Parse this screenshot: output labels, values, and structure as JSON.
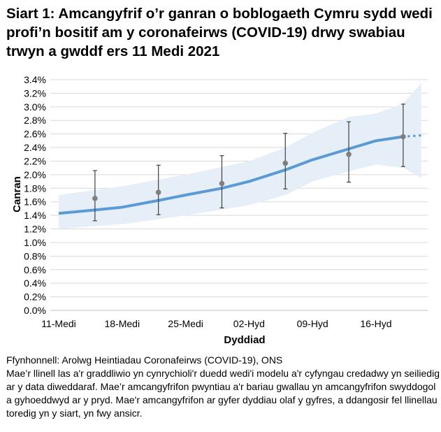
{
  "title": "Siart 1: Amcangyfrif o’r ganran o boblogaeth Cymru sydd wedi profi’n bositif am y coronafeirws (COVID-19) drwy swabiau trwyn a gwddf ers 11 Medi 2021",
  "source": "Ffynhonnell: Arolwg Heintiadau Coronafeirws (COVID-19), ONS",
  "footnote": "Mae’r llinell las a'r graddliwio yn cynrychioli'r duedd wedi'i modelu a'r cyfyngau credadwy yn seiliedig ar y data diweddaraf. Mae’r amcangyfrifon pwyntiau a'r bariau gwallau yn amcangyfrifon swyddogol a gyhoeddwyd ar y pryd. Mae'r amcangyfrifon ar gyfer dyddiau olaf y gyfres, a ddangosir fel llinellau toredig yn y siart, yn fwy ansicr.",
  "chart_data": {
    "type": "line",
    "xlabel": "Dyddiad",
    "ylabel": "Canran",
    "ylim": [
      0,
      3.4
    ],
    "yticks": [
      "0.0%",
      "0.2%",
      "0.4%",
      "0.6%",
      "0.8%",
      "1.0%",
      "1.2%",
      "1.4%",
      "1.6%",
      "1.8%",
      "2.0%",
      "2.2%",
      "2.4%",
      "2.6%",
      "2.8%",
      "3.0%",
      "3.2%",
      "3.4%"
    ],
    "xticks": [
      {
        "day": 0,
        "label": "11-Medi"
      },
      {
        "day": 7,
        "label": "18-Medi"
      },
      {
        "day": 14,
        "label": "25-Medi"
      },
      {
        "day": 21,
        "label": "02-Hyd"
      },
      {
        "day": 28,
        "label": "09-Hyd"
      },
      {
        "day": 35,
        "label": "16-Hyd"
      }
    ],
    "grid": true,
    "colors": {
      "model": "#5b9bd5",
      "band": "#e6eef8",
      "points": "#7f7f7f",
      "errorbars": "#404040"
    },
    "model": [
      [
        0,
        1.43
      ],
      [
        4,
        1.48
      ],
      [
        7,
        1.52
      ],
      [
        11,
        1.62
      ],
      [
        14,
        1.7
      ],
      [
        18,
        1.8
      ],
      [
        21,
        1.9
      ],
      [
        25,
        2.07
      ],
      [
        28,
        2.22
      ],
      [
        32,
        2.38
      ],
      [
        35,
        2.5
      ],
      [
        38,
        2.56
      ]
    ],
    "model_provisional": [
      [
        38,
        2.56
      ],
      [
        40,
        2.58
      ]
    ],
    "credible_interval": [
      [
        0,
        1.2,
        1.7
      ],
      [
        7,
        1.27,
        1.83
      ],
      [
        14,
        1.4,
        2.0
      ],
      [
        21,
        1.55,
        2.2
      ],
      [
        25,
        1.7,
        2.4
      ],
      [
        28,
        1.9,
        2.62
      ],
      [
        32,
        2.05,
        2.85
      ],
      [
        35,
        2.15,
        2.9
      ],
      [
        38,
        2.1,
        3.05
      ],
      [
        40,
        1.95,
        3.35
      ]
    ],
    "official_estimates": [
      {
        "day": 4,
        "value": 1.65,
        "low": 1.32,
        "high": 2.06
      },
      {
        "day": 11,
        "value": 1.74,
        "low": 1.41,
        "high": 2.14
      },
      {
        "day": 18,
        "value": 1.87,
        "low": 1.51,
        "high": 2.28
      },
      {
        "day": 25,
        "value": 2.17,
        "low": 1.79,
        "high": 2.61
      },
      {
        "day": 32,
        "value": 2.3,
        "low": 1.89,
        "high": 2.78
      },
      {
        "day": 38,
        "value": 2.56,
        "low": 2.12,
        "high": 3.04
      }
    ]
  }
}
